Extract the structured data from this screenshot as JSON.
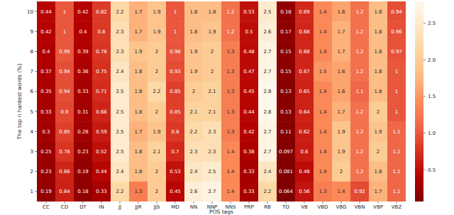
{
  "chart_data": {
    "type": "heatmap",
    "x_label": "POS tags",
    "y_label": "The top n hardest words (%)",
    "categories": [
      "CC",
      "CD",
      "DT",
      "IN",
      "JJ",
      "JJR",
      "JJS",
      "MD",
      "NN",
      "NNP",
      "NNS",
      "PRP",
      "RB",
      "TO",
      "VB",
      "VBD",
      "VBG",
      "VBN",
      "VBP",
      "VBZ"
    ],
    "rows": [
      "10",
      "9",
      "8",
      "7",
      "6",
      "5",
      "4",
      "3",
      "2",
      "1"
    ],
    "data_labels": true,
    "cells": [
      [
        0.44,
        1,
        0.42,
        0.82,
        2.2,
        1.7,
        1.9,
        1,
        1.8,
        1.8,
        1.2,
        0.53,
        2.5,
        0.18,
        0.69,
        1.4,
        1.6,
        1.2,
        1.8,
        0.94
      ],
      [
        0.42,
        1,
        0.4,
        0.8,
        2.3,
        1.7,
        1.9,
        1,
        1.8,
        1.9,
        1.2,
        0.5,
        2.6,
        0.17,
        0.68,
        1.4,
        1.7,
        1.2,
        1.8,
        0.96
      ],
      [
        0.4,
        0.99,
        0.39,
        0.78,
        2.3,
        1.9,
        2,
        0.98,
        1.9,
        2,
        1.3,
        0.48,
        2.7,
        0.15,
        0.68,
        1.4,
        1.7,
        1.2,
        1.8,
        0.97
      ],
      [
        0.37,
        0.94,
        0.36,
        0.75,
        2.4,
        1.8,
        2,
        0.93,
        1.9,
        2,
        1.3,
        0.47,
        2.7,
        0.15,
        0.67,
        1.5,
        1.6,
        1.2,
        1.8,
        1
      ],
      [
        0.35,
        0.94,
        0.33,
        0.71,
        2.5,
        1.8,
        2.2,
        0.85,
        2,
        2.1,
        1.3,
        0.45,
        2.8,
        0.13,
        0.65,
        1.4,
        1.6,
        1.1,
        1.8,
        1
      ],
      [
        0.33,
        0.9,
        0.31,
        0.66,
        2.5,
        1.8,
        2,
        0.85,
        2.1,
        2.1,
        1.3,
        0.44,
        2.8,
        0.13,
        0.64,
        1.4,
        1.7,
        1.2,
        2,
        1
      ],
      [
        0.3,
        0.85,
        0.28,
        0.59,
        2.5,
        1.7,
        1.9,
        0.8,
        2.2,
        2.3,
        1.3,
        0.42,
        2.7,
        0.11,
        0.62,
        1.4,
        1.9,
        1.2,
        1.9,
        1.1
      ],
      [
        0.25,
        0.78,
        0.23,
        0.52,
        2.5,
        1.8,
        2.1,
        0.7,
        2.3,
        2.3,
        1.4,
        0.38,
        2.7,
        0.097,
        0.6,
        1.4,
        1.9,
        1.2,
        2,
        1.1
      ],
      [
        0.23,
        0.66,
        0.19,
        0.44,
        2.4,
        1.8,
        2,
        0.53,
        2.4,
        2.5,
        1.4,
        0.33,
        2.4,
        0.081,
        0.48,
        1.4,
        2,
        1.2,
        1.8,
        1.1
      ],
      [
        0.19,
        0.64,
        0.18,
        0.33,
        2.2,
        1.3,
        2,
        0.45,
        2.6,
        2.7,
        1.4,
        0.33,
        2.2,
        0.064,
        0.56,
        1.3,
        1.4,
        0.92,
        1.7,
        1.1
      ]
    ],
    "colorbar": {
      "range": [
        0.064,
        2.8
      ],
      "ticks": [
        0.5,
        {
          "value": 1,
          "label": "1.0"
        },
        1.5,
        {
          "value": 2,
          "label": "2.0"
        },
        2.5
      ]
    }
  }
}
